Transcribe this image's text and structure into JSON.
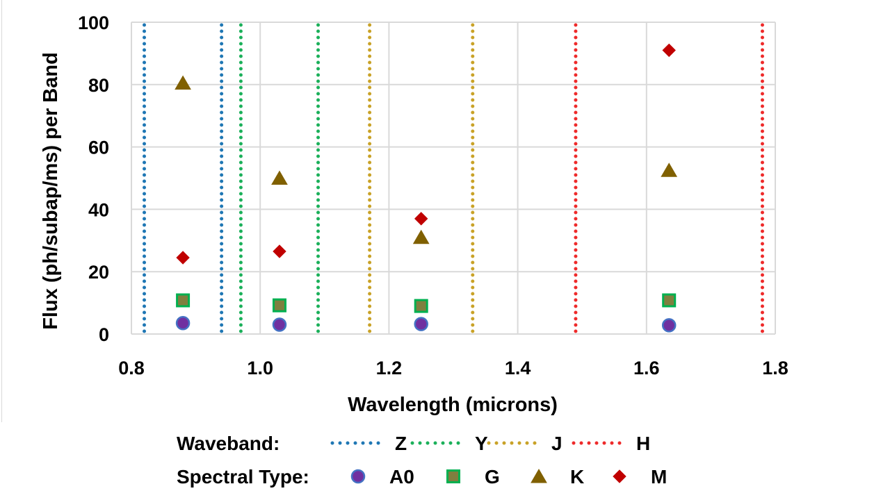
{
  "chart_data": {
    "type": "scatter",
    "title": "",
    "xlabel": "Wavelength (microns)",
    "ylabel": "Flux (ph/subap/ms) per Band",
    "xlim": [
      0.8,
      1.8
    ],
    "ylim": [
      0,
      100
    ],
    "x_ticks": [
      "0.8",
      "1.0",
      "1.2",
      "1.4",
      "1.6",
      "1.8"
    ],
    "y_ticks": [
      "0",
      "20",
      "40",
      "60",
      "80",
      "100"
    ],
    "grid": true,
    "waveband_legend_title": "Waveband:",
    "spectral_legend_title": "Spectral Type:",
    "wavebands": [
      {
        "name": "Z",
        "color": "#1f77b4",
        "bounds": [
          0.82,
          0.94
        ]
      },
      {
        "name": "Y",
        "color": "#1bb05a",
        "bounds": [
          0.97,
          1.09
        ]
      },
      {
        "name": "J",
        "color": "#c9a227",
        "bounds": [
          1.17,
          1.33
        ]
      },
      {
        "name": "H",
        "color": "#ee2a2a",
        "bounds": [
          1.49,
          1.78
        ]
      }
    ],
    "series": [
      {
        "name": "A0",
        "marker": "circle",
        "fill": "#7030a0",
        "stroke": "#4472c4",
        "x": [
          0.88,
          1.03,
          1.25,
          1.635
        ],
        "y": [
          3.5,
          3.0,
          3.2,
          2.8
        ]
      },
      {
        "name": "G",
        "marker": "square",
        "fill": "#7f7f3f",
        "stroke": "#00b050",
        "x": [
          0.88,
          1.03,
          1.25,
          1.635
        ],
        "y": [
          10.8,
          9.2,
          9.0,
          10.8
        ]
      },
      {
        "name": "K",
        "marker": "triangle",
        "fill": "#806000",
        "stroke": "#806000",
        "x": [
          0.88,
          1.03,
          1.25,
          1.635
        ],
        "y": [
          80.5,
          50.0,
          31.0,
          52.5
        ]
      },
      {
        "name": "M",
        "marker": "diamond",
        "fill": "#c00000",
        "stroke": "#c00000",
        "x": [
          0.88,
          1.03,
          1.25,
          1.635
        ],
        "y": [
          24.5,
          26.5,
          37.0,
          91.0
        ]
      }
    ]
  }
}
